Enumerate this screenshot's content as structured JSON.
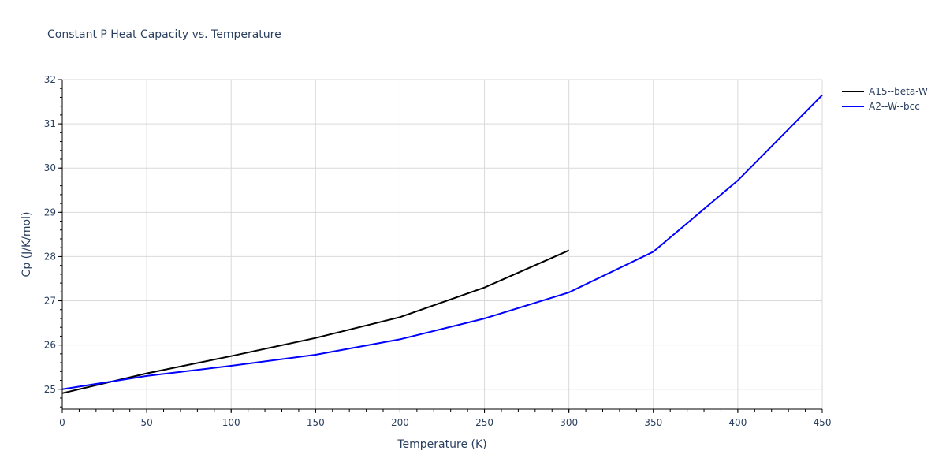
{
  "chart_data": {
    "type": "line",
    "title": "Constant P Heat Capacity vs. Temperature",
    "xlabel": "Temperature (K)",
    "ylabel": "Cp (J/K/mol)",
    "xlim": [
      0,
      450
    ],
    "ylim": [
      24.55,
      32
    ],
    "x_ticks": [
      0,
      50,
      100,
      150,
      200,
      250,
      300,
      350,
      400,
      450
    ],
    "y_ticks": [
      25,
      26,
      27,
      28,
      29,
      30,
      31,
      32
    ],
    "x_minor_step": 10,
    "y_minor_step": 0.2,
    "grid": true,
    "legend_position": "top-right-outside",
    "series": [
      {
        "name": "A15--beta-W",
        "color": "#000000",
        "x": [
          0,
          50,
          100,
          150,
          200,
          250,
          300
        ],
        "values": [
          24.91,
          25.36,
          25.75,
          26.16,
          26.63,
          27.3,
          28.14
        ]
      },
      {
        "name": "A2--W--bcc",
        "color": "#0000ff",
        "x": [
          0,
          50,
          100,
          150,
          200,
          250,
          300,
          350,
          400,
          450
        ],
        "values": [
          25.0,
          25.3,
          25.53,
          25.78,
          26.13,
          26.6,
          27.19,
          28.11,
          29.72,
          31.65
        ]
      }
    ]
  },
  "colors": {
    "text": "#2a3f5f",
    "grid": "#d9d9d9",
    "axis": "#000000"
  }
}
